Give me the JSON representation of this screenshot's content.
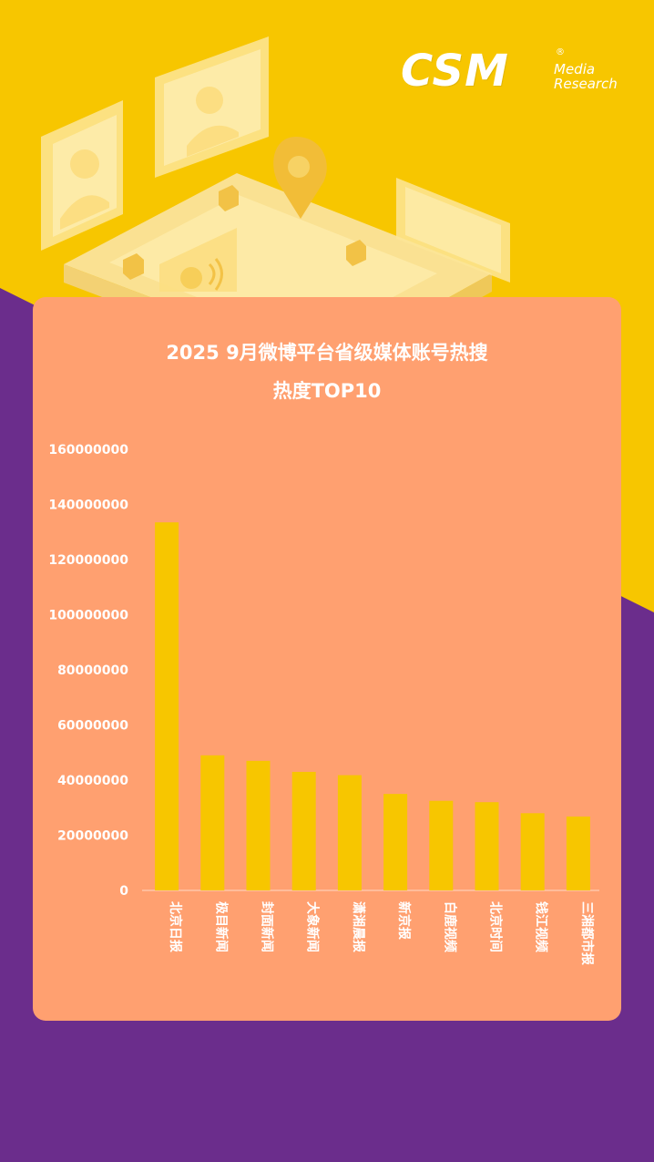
{
  "brand": {
    "name": "CSM",
    "registered": "®",
    "line1": "Media",
    "line2": "Research"
  },
  "colors": {
    "yellow": "#f7c600",
    "purple": "#6b2d8c",
    "card": "#ffa070",
    "bar": "#f7c600",
    "text": "#ffffff"
  },
  "chart_data": {
    "type": "bar",
    "title_line1": "2025 9月微博平台省级媒体账号热搜",
    "title_line2": "热度TOP10",
    "categories": [
      "北京日报",
      "极目新闻",
      "封面新闻",
      "大象新闻",
      "潇湘晨报",
      "新京报",
      "白鹿视频",
      "北京时间",
      "钱江视频",
      "三湘都市报"
    ],
    "values": [
      133500000,
      49000000,
      47000000,
      43000000,
      41800000,
      35000000,
      32500000,
      32000000,
      28000000,
      26800000
    ],
    "yticks": [
      "0",
      "20000000",
      "40000000",
      "60000000",
      "80000000",
      "100000000",
      "120000000",
      "140000000",
      "160000000"
    ],
    "ylim": [
      0,
      160000000
    ],
    "xlabel": "",
    "ylabel": "",
    "grid": false,
    "legend": "none"
  }
}
